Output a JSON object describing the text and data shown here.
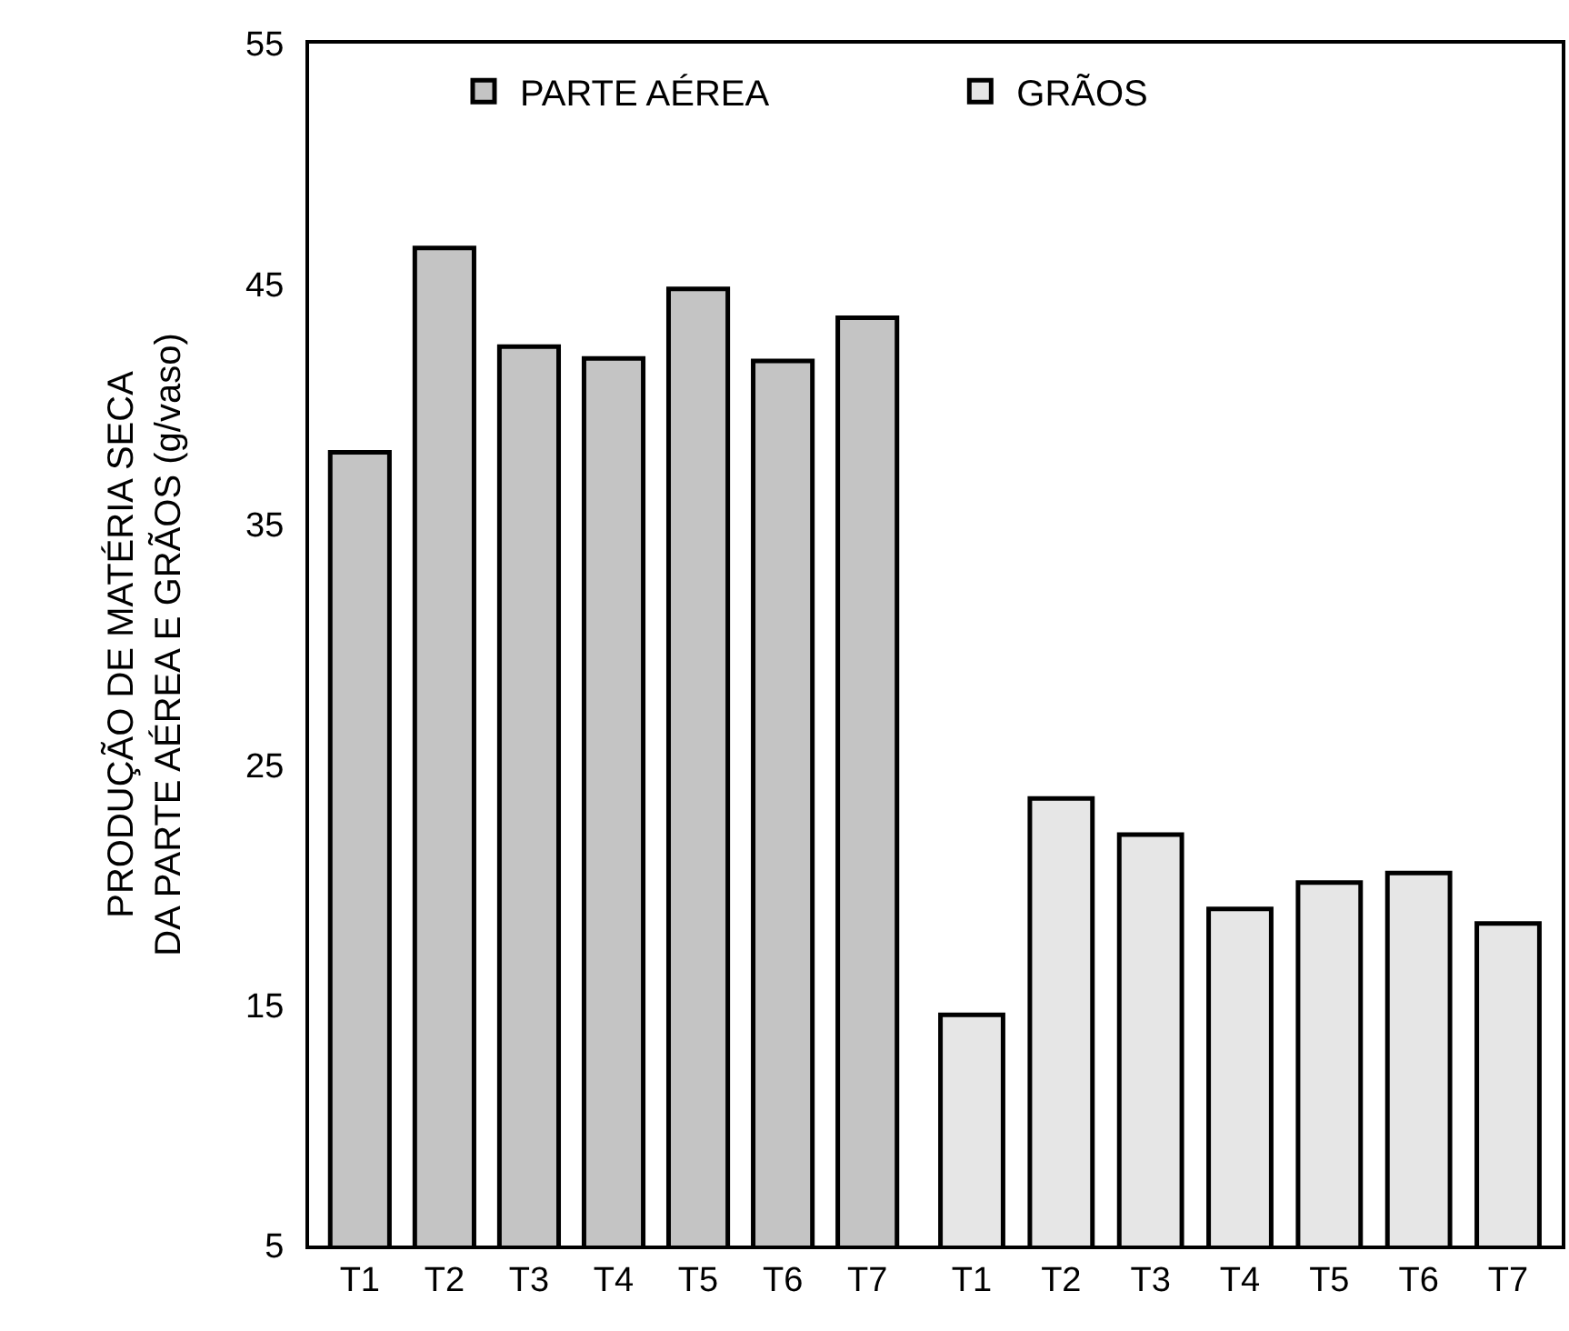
{
  "chart_data": [
    {
      "type": "bar",
      "ylabel": "PRODUÇÃO DE MATÉRIA SECA\nDA PARTE AÉREA E GRÃOS (g/vaso)",
      "categories": [
        "T1",
        "T2",
        "T3",
        "T4",
        "T5",
        "T6",
        "T7"
      ],
      "series": [
        {
          "name": "PARTE AÉREA",
          "color": "#c4c4c4",
          "values": [
            38.0,
            46.5,
            42.4,
            41.9,
            44.8,
            41.8,
            43.6
          ]
        }
      ],
      "ylim": [
        5,
        55
      ],
      "yticks": [
        5,
        15,
        25,
        35,
        45,
        55
      ],
      "grid": false,
      "legend": "top"
    },
    {
      "type": "bar",
      "categories": [
        "T1",
        "T2",
        "T3",
        "T4",
        "T5",
        "T6",
        "T7"
      ],
      "series": [
        {
          "name": "GRÃOS",
          "color": "#e6e6e6",
          "values": [
            14.6,
            23.6,
            22.1,
            19.0,
            20.1,
            20.5,
            18.4
          ]
        }
      ],
      "ylim": [
        5,
        55
      ],
      "yticks": [
        5,
        15,
        25,
        35,
        45,
        55
      ],
      "tick_labels": "x",
      "grid": false,
      "legend": "top left"
    }
  ]
}
